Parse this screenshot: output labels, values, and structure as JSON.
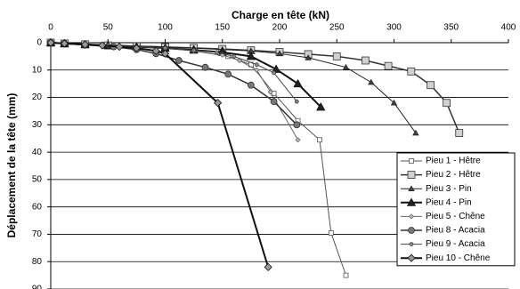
{
  "chart_data": {
    "type": "line",
    "xlabel": "Charge en tête (kN)",
    "ylabel": "Déplacement de la tête (mm)",
    "xlim": [
      0,
      400
    ],
    "xticks": [
      0,
      50,
      100,
      150,
      200,
      250,
      300,
      350,
      400
    ],
    "ylim": [
      0,
      90
    ],
    "yticks": [
      0,
      10,
      20,
      30,
      40,
      50,
      60,
      70,
      80,
      90
    ],
    "y_inverted": true,
    "x_axis_top": true,
    "grid": true,
    "legend": "right",
    "series": [
      {
        "name": "Pieu 1 - Hêtre",
        "color": "#555555",
        "fill": "#ffffff",
        "marker": "square",
        "marker_size": 5,
        "line_width": 1,
        "x": [
          0,
          12,
          30,
          50,
          75,
          100,
          125,
          155,
          175,
          195,
          216,
          235,
          245,
          258
        ],
        "values": [
          0,
          0.3,
          0.6,
          1,
          1.5,
          2,
          3,
          5,
          8,
          18.5,
          28.5,
          35.5,
          69.5,
          85
        ]
      },
      {
        "name": "Pieu 2 - Hêtre",
        "color": "#333333",
        "fill": "#d0d0d0",
        "marker": "square",
        "marker_size": 8,
        "line_width": 1.5,
        "x": [
          0,
          12,
          30,
          50,
          75,
          100,
          125,
          150,
          175,
          200,
          225,
          250,
          275,
          295,
          315,
          332,
          346,
          357
        ],
        "values": [
          0,
          0.3,
          0.6,
          1,
          1.3,
          1.6,
          1.9,
          2.3,
          2.8,
          3.4,
          4.2,
          5,
          6.5,
          8.5,
          10.5,
          15.5,
          22,
          33
        ]
      },
      {
        "name": "Pieu 3 - Pin",
        "color": "#222222",
        "fill": "#444444",
        "marker": "triangle",
        "marker_size": 6,
        "line_width": 1,
        "x": [
          0,
          12,
          30,
          50,
          75,
          100,
          125,
          150,
          175,
          200,
          225,
          258,
          280,
          300,
          319
        ],
        "values": [
          0,
          0.3,
          0.5,
          0.8,
          1.2,
          1.5,
          2,
          2.5,
          3,
          4,
          5.5,
          9,
          14.5,
          22,
          33
        ]
      },
      {
        "name": "Pieu 4 - Pin",
        "color": "#111111",
        "fill": "#222222",
        "marker": "triangle",
        "marker_size": 9,
        "line_width": 2,
        "x": [
          0,
          12,
          30,
          50,
          75,
          100,
          125,
          150,
          175,
          197,
          216,
          236
        ],
        "values": [
          0,
          0.3,
          0.7,
          1,
          1.5,
          2,
          2.7,
          3.5,
          5,
          9.7,
          15,
          23.5
        ]
      },
      {
        "name": "Pieu 5 - Chêne",
        "color": "#666666",
        "fill": "#bbbbbb",
        "marker": "diamond",
        "marker_size": 5,
        "line_width": 1,
        "x": [
          0,
          12,
          30,
          50,
          75,
          100,
          125,
          150,
          165,
          180,
          192,
          216
        ],
        "values": [
          0,
          0.3,
          0.6,
          1,
          1.5,
          2,
          3,
          4.5,
          6.5,
          10,
          18,
          35.5
        ]
      },
      {
        "name": "Pieu 8 - Acacia",
        "color": "#333333",
        "fill": "#777777",
        "marker": "circle",
        "marker_size": 7,
        "line_width": 1.5,
        "x": [
          0,
          12,
          30,
          55,
          75,
          92,
          112,
          135,
          155,
          175,
          195,
          215
        ],
        "values": [
          0,
          0.3,
          0.8,
          1.5,
          2.5,
          4,
          6.5,
          9,
          11.5,
          15.5,
          21.5,
          30
        ]
      },
      {
        "name": "Pieu 9 - Acacia",
        "color": "#444444",
        "fill": "#888888",
        "marker": "circle",
        "marker_size": 4,
        "line_width": 1,
        "x": [
          0,
          12,
          30,
          50,
          75,
          100,
          125,
          145,
          160,
          180,
          195,
          215
        ],
        "values": [
          0,
          0.3,
          0.6,
          1,
          1.5,
          2,
          2.8,
          3.5,
          5,
          8,
          11,
          21.5
        ]
      },
      {
        "name": "Pieu 10 - Chêne",
        "color": "#111111",
        "fill": "#999999",
        "marker": "diamond",
        "marker_size": 8,
        "line_width": 2,
        "x": [
          0,
          12,
          30,
          45,
          60,
          75,
          92,
          100,
          146,
          190
        ],
        "values": [
          0,
          0.3,
          0.7,
          1,
          1.5,
          2,
          3,
          4,
          22,
          82
        ]
      }
    ]
  }
}
